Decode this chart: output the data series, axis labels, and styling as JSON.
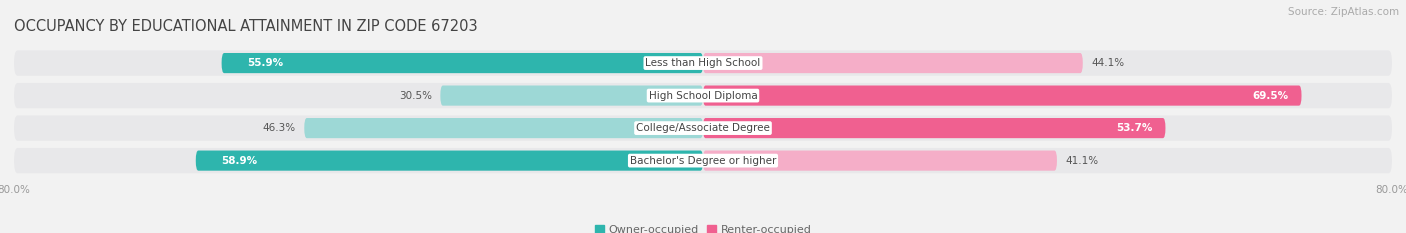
{
  "title": "OCCUPANCY BY EDUCATIONAL ATTAINMENT IN ZIP CODE 67203",
  "source": "Source: ZipAtlas.com",
  "categories": [
    "Less than High School",
    "High School Diploma",
    "College/Associate Degree",
    "Bachelor's Degree or higher"
  ],
  "owner_values": [
    55.9,
    30.5,
    46.3,
    58.9
  ],
  "renter_values": [
    44.1,
    69.5,
    53.7,
    41.1
  ],
  "owner_color_dark": "#2eb5ad",
  "owner_color_light": "#9dd8d6",
  "renter_color_dark": "#f06090",
  "renter_color_light": "#f5aec8",
  "row_bg_color": "#e8e8ea",
  "bg_color": "#f2f2f2",
  "xlim_left": -80.0,
  "xlim_right": 80.0,
  "x_tick_labels": [
    "80.0%",
    "80.0%"
  ],
  "legend_labels": [
    "Owner-occupied",
    "Renter-occupied"
  ],
  "title_fontsize": 10.5,
  "source_fontsize": 7.5,
  "label_fontsize": 7.5,
  "value_fontsize": 7.5
}
